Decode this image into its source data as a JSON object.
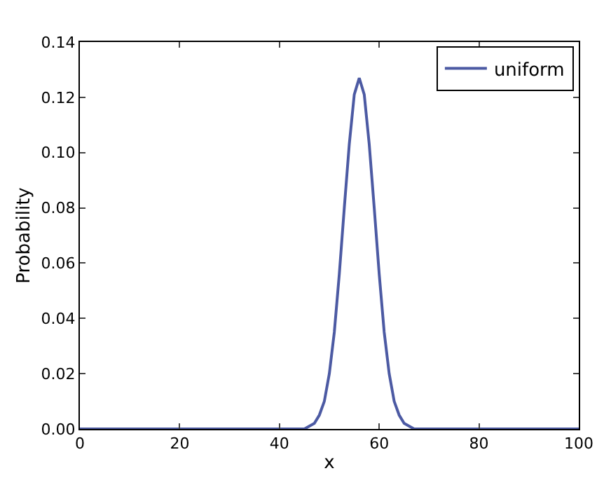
{
  "chart_data": {
    "type": "line",
    "xlabel": "x",
    "ylabel": "Probability",
    "x": [
      0,
      10,
      20,
      30,
      40,
      44,
      45,
      46,
      47,
      48,
      49,
      50,
      51,
      52,
      53,
      54,
      55,
      56,
      57,
      58,
      59,
      60,
      61,
      62,
      63,
      64,
      65,
      66,
      67,
      68,
      69,
      70,
      80,
      90,
      100
    ],
    "series": [
      {
        "name": "uniform",
        "color": "#4c5aa3",
        "values": [
          0,
          0,
          0,
          0,
          0,
          0,
          0,
          0.001,
          0.002,
          0.005,
          0.01,
          0.02,
          0.035,
          0.056,
          0.08,
          0.103,
          0.121,
          0.127,
          0.121,
          0.103,
          0.08,
          0.056,
          0.035,
          0.02,
          0.01,
          0.005,
          0.002,
          0.001,
          0,
          0,
          0,
          0,
          0,
          0,
          0
        ]
      }
    ],
    "xlim": [
      0,
      100
    ],
    "xticks": [
      0,
      20,
      40,
      60,
      80,
      100
    ],
    "ylim": [
      0,
      0.14
    ],
    "yticks": [
      {
        "value": 0,
        "label": "0.00"
      },
      {
        "value": 0.02,
        "label": "0.02"
      },
      {
        "value": 0.04,
        "label": "0.04"
      },
      {
        "value": 0.06,
        "label": "0.06"
      },
      {
        "value": 0.08,
        "label": "0.08"
      },
      {
        "value": 0.1,
        "label": "0.10"
      },
      {
        "value": 0.12,
        "label": "0.12"
      },
      {
        "value": 0.14,
        "label": "0.14"
      }
    ],
    "legend": "top right",
    "marker": "none",
    "line_style": "solid"
  }
}
